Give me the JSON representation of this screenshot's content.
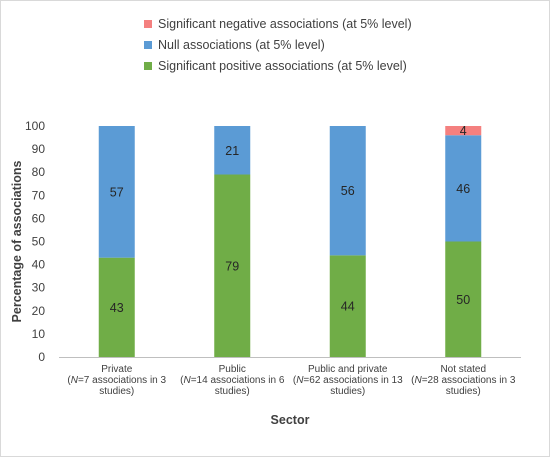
{
  "chart_data": {
    "type": "bar",
    "stacked": true,
    "title": "",
    "xlabel": "Sector",
    "ylabel": "Percentage of associations",
    "ylim": [
      0,
      100
    ],
    "yticks": [
      0,
      10,
      20,
      30,
      40,
      50,
      60,
      70,
      80,
      90,
      100
    ],
    "grid": false,
    "legend_position": "top",
    "categories": [
      {
        "label_lines": [
          "Private",
          "(N=7 associations in 3",
          "studies)"
        ]
      },
      {
        "label_lines": [
          "Public",
          "(N=14 associations in 6",
          "studies)"
        ]
      },
      {
        "label_lines": [
          "Public and private",
          "(N=62 associations in 13",
          "studies)"
        ]
      },
      {
        "label_lines": [
          "Not stated",
          "(N=28 associations in 3",
          "studies)"
        ]
      }
    ],
    "series": [
      {
        "name": "Significant positive associations (at 5% level)",
        "color": "#70ad47",
        "values": [
          43,
          79,
          44,
          50
        ]
      },
      {
        "name": "Null associations (at 5% level)",
        "color": "#5b9bd5",
        "values": [
          57,
          21,
          56,
          46
        ]
      },
      {
        "name": "Significant negative associations (at 5% level)",
        "color": "#f4807f",
        "values": [
          0,
          0,
          0,
          4
        ]
      }
    ],
    "legend_order": [
      2,
      1,
      0
    ]
  }
}
